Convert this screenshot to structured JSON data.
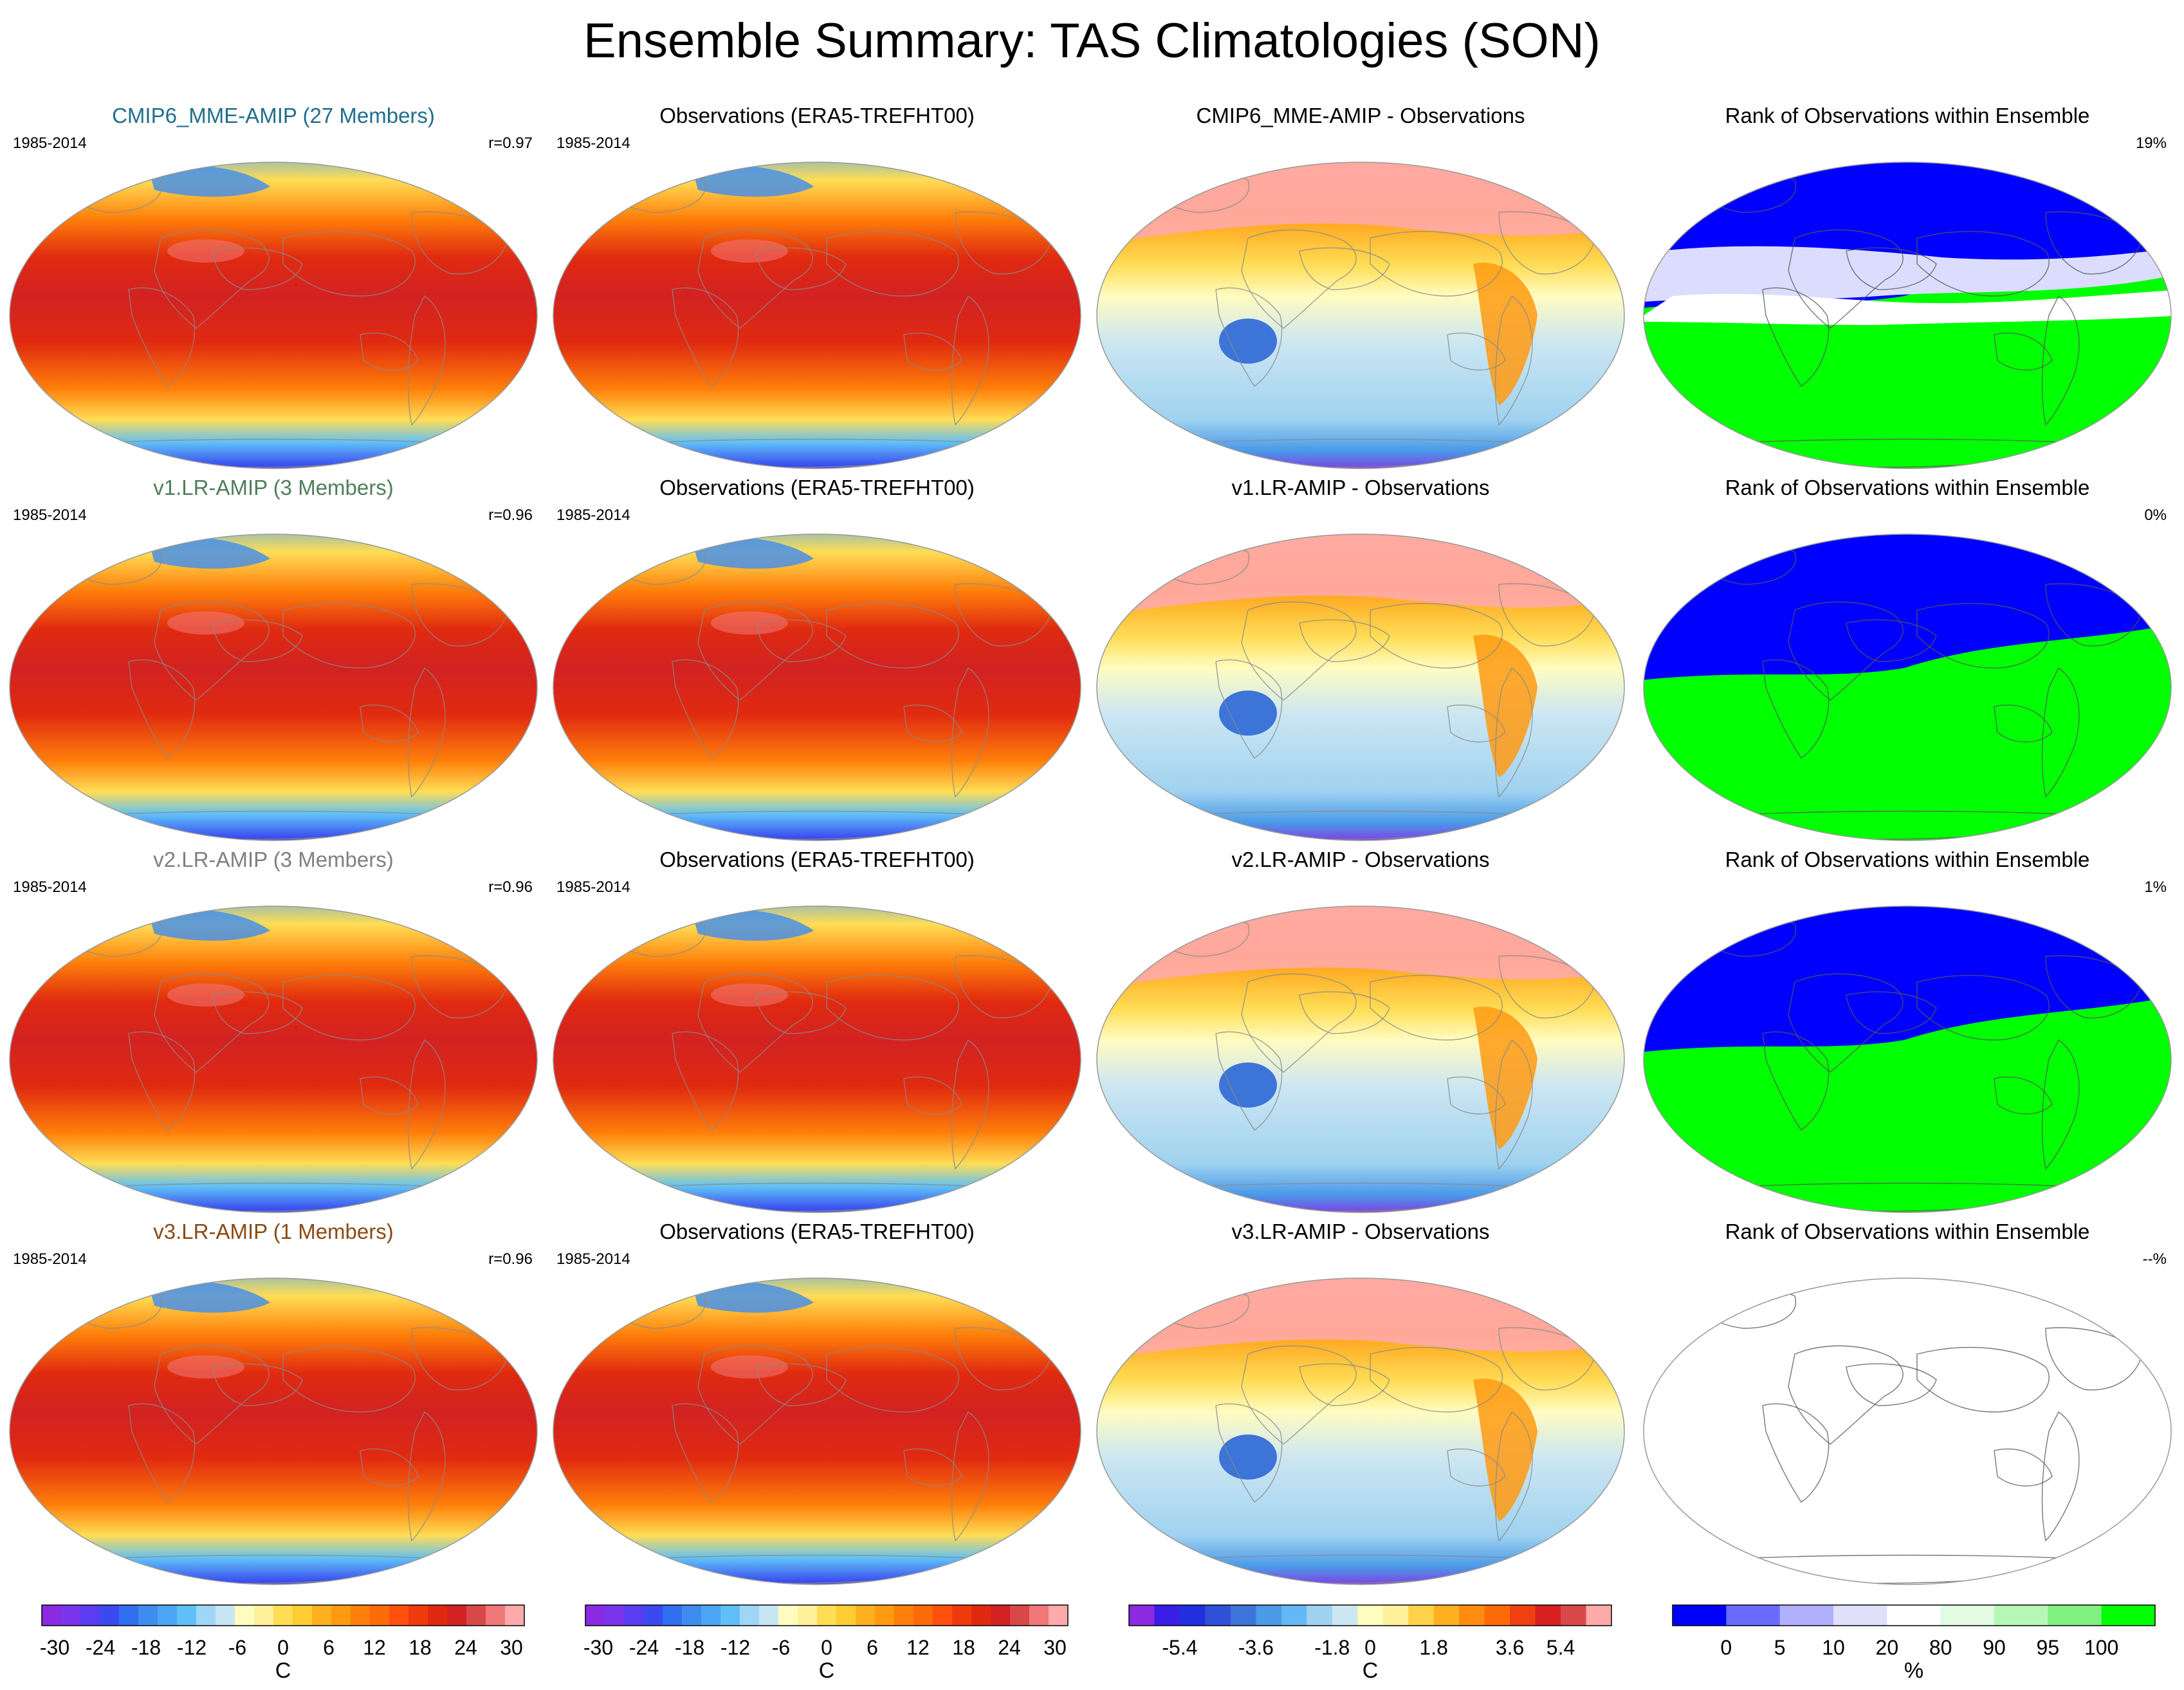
{
  "title": "Ensemble Summary: TAS Climatologies (SON)",
  "colors": {
    "cmip6": "#1f6f8b",
    "v1": "#4f7f5a",
    "v2": "#808080",
    "v3": "#8a4a14",
    "rank_blue": "#0000ff",
    "rank_green": "#00ff00"
  },
  "rows": [
    {
      "model": {
        "title": "CMIP6_MME-AMIP (27 Members)",
        "color": "#1f6f8b",
        "period": "1985-2014",
        "corr": "r=0.97"
      },
      "obs": {
        "title": "Observations (ERA5-TREFHT00)",
        "period": "1985-2014"
      },
      "diff": {
        "title": "CMIP6_MME-AMIP - Observations"
      },
      "rank": {
        "title": "Rank of Observations within Ensemble",
        "value": "19%",
        "fill": "split-white"
      }
    },
    {
      "model": {
        "title": "v1.LR-AMIP (3 Members)",
        "color": "#4f7f5a",
        "period": "1985-2014",
        "corr": "r=0.96"
      },
      "obs": {
        "title": "Observations (ERA5-TREFHT00)",
        "period": "1985-2014"
      },
      "diff": {
        "title": "v1.LR-AMIP - Observations"
      },
      "rank": {
        "title": "Rank of Observations within Ensemble",
        "value": "0%",
        "fill": "split"
      }
    },
    {
      "model": {
        "title": "v2.LR-AMIP (3 Members)",
        "color": "#808080",
        "period": "1985-2014",
        "corr": "r=0.96"
      },
      "obs": {
        "title": "Observations (ERA5-TREFHT00)",
        "period": "1985-2014"
      },
      "diff": {
        "title": "v2.LR-AMIP - Observations"
      },
      "rank": {
        "title": "Rank of Observations within Ensemble",
        "value": "1%",
        "fill": "split"
      }
    },
    {
      "model": {
        "title": "v3.LR-AMIP (1 Members)",
        "color": "#8a4a14",
        "period": "1985-2014",
        "corr": "r=0.96"
      },
      "obs": {
        "title": "Observations (ERA5-TREFHT00)",
        "period": "1985-2014"
      },
      "diff": {
        "title": "v3.LR-AMIP - Observations"
      },
      "rank": {
        "title": "Rank of Observations within Ensemble",
        "value": "--%",
        "fill": "empty"
      }
    }
  ],
  "colorbars": [
    {
      "unit": "C",
      "labels": [
        "-30",
        "-24",
        "-18",
        "-12",
        "-6",
        "0",
        "6",
        "12",
        "18",
        "24",
        "30"
      ],
      "colors": [
        "#8a2be2",
        "#7a34ee",
        "#5b3cf0",
        "#3a4af0",
        "#2f6ff0",
        "#3f8cf0",
        "#4aa6f3",
        "#5fc0f7",
        "#9fd6f7",
        "#c8e6f4",
        "#fffcc0",
        "#fff09a",
        "#ffdd55",
        "#ffcc33",
        "#ffb01f",
        "#ff9a12",
        "#ff7f0a",
        "#ff6a08",
        "#ff4f0c",
        "#f03a0d",
        "#e02a10",
        "#d32222",
        "#d84848",
        "#f07878",
        "#ffaaaa"
      ]
    },
    {
      "unit": "C",
      "labels": [
        "-30",
        "-24",
        "-18",
        "-12",
        "-6",
        "0",
        "6",
        "12",
        "18",
        "24",
        "30"
      ],
      "colors": [
        "#8a2be2",
        "#7a34ee",
        "#5b3cf0",
        "#3a4af0",
        "#2f6ff0",
        "#3f8cf0",
        "#4aa6f3",
        "#5fc0f7",
        "#9fd6f7",
        "#c8e6f4",
        "#fffcc0",
        "#fff09a",
        "#ffdd55",
        "#ffcc33",
        "#ffb01f",
        "#ff9a12",
        "#ff7f0a",
        "#ff6a08",
        "#ff4f0c",
        "#f03a0d",
        "#e02a10",
        "#d32222",
        "#d84848",
        "#f07878",
        "#ffaaaa"
      ]
    },
    {
      "unit": "C",
      "labels": [
        "-5.4",
        "-3.6",
        "-1.8",
        "0",
        "1.8",
        "3.6",
        "5.4"
      ],
      "colors": [
        "#8a2be2",
        "#3a1ee8",
        "#2030e0",
        "#3050d8",
        "#3c74d8",
        "#4a9ae8",
        "#64b8f4",
        "#9fd2f0",
        "#cce6f2",
        "#fffcc0",
        "#fff09a",
        "#ffd24a",
        "#ffb020",
        "#ff8c10",
        "#ff6a08",
        "#f04010",
        "#d82020",
        "#d84848",
        "#ffaaaa"
      ]
    },
    {
      "unit": "%",
      "labels": [
        "0",
        "5",
        "10",
        "20",
        "80",
        "90",
        "95",
        "100"
      ],
      "colors": [
        "#0000ff",
        "#6a6aff",
        "#b0b0ff",
        "#e0e0fa",
        "#ffffff",
        "#e2fbe2",
        "#b6f7b6",
        "#80f080",
        "#00ff00"
      ]
    }
  ]
}
